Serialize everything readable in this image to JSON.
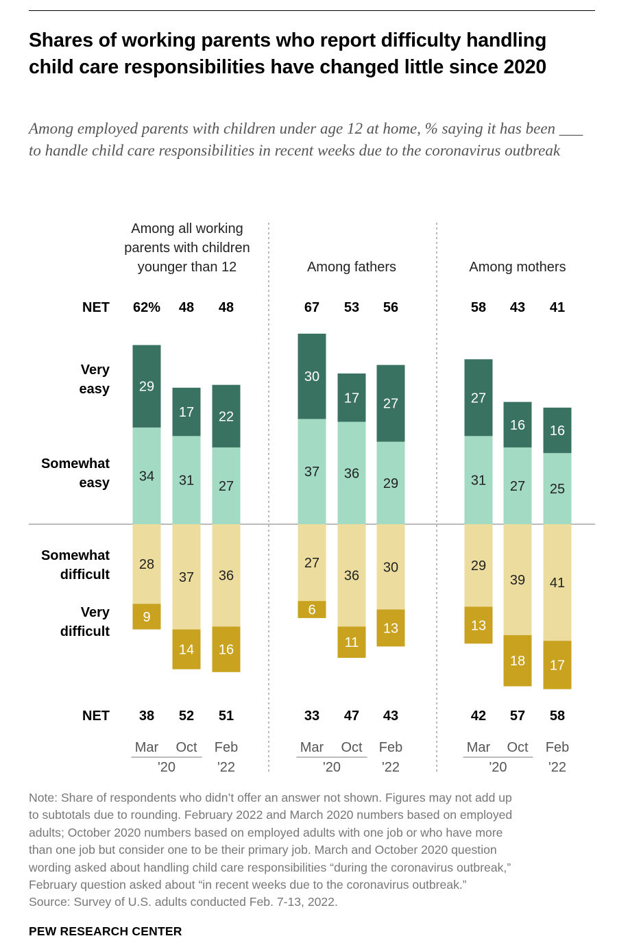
{
  "title": "Shares of working parents who report difficulty handling child care responsibilities have changed little since 2020",
  "subtitle": "Among employed parents with children under age 12 at home, % saying it has been ___ to handle child care responsibilities in recent weeks due to the coronavirus outbreak",
  "row_labels": {
    "net": "NET",
    "very_easy": [
      "Very",
      "easy"
    ],
    "somewhat_easy": [
      "Somewhat",
      "easy"
    ],
    "somewhat_difficult": [
      "Somewhat",
      "difficult"
    ],
    "very_difficult": [
      "Very",
      "difficult"
    ]
  },
  "colors": {
    "very_easy": "#3a7261",
    "somewhat_easy": "#a2dac3",
    "somewhat_difficult": "#ecdd9f",
    "very_difficult": "#c9a320"
  },
  "chart_data": {
    "type": "bar",
    "stacking": "diverging",
    "groups": [
      {
        "label": [
          "Among all working",
          "parents with children",
          "younger than 12"
        ],
        "categories": [
          "Mar",
          "Oct",
          "Feb"
        ],
        "year_labels": [
          "'20",
          "'22"
        ],
        "net_easy": [
          "62%",
          "48",
          "48"
        ],
        "net_difficult": [
          "38",
          "52",
          "51"
        ],
        "series": [
          {
            "name": "Very easy",
            "values": [
              29,
              17,
              22
            ]
          },
          {
            "name": "Somewhat easy",
            "values": [
              34,
              31,
              27
            ]
          },
          {
            "name": "Somewhat difficult",
            "values": [
              28,
              37,
              36
            ]
          },
          {
            "name": "Very difficult",
            "values": [
              9,
              14,
              16
            ]
          }
        ]
      },
      {
        "label": [
          "Among fathers"
        ],
        "categories": [
          "Mar",
          "Oct",
          "Feb"
        ],
        "year_labels": [
          "'20",
          "'22"
        ],
        "net_easy": [
          "67",
          "53",
          "56"
        ],
        "net_difficult": [
          "33",
          "47",
          "43"
        ],
        "series": [
          {
            "name": "Very easy",
            "values": [
              30,
              17,
              27
            ]
          },
          {
            "name": "Somewhat easy",
            "values": [
              37,
              36,
              29
            ]
          },
          {
            "name": "Somewhat difficult",
            "values": [
              27,
              36,
              30
            ]
          },
          {
            "name": "Very difficult",
            "values": [
              6,
              11,
              13
            ]
          }
        ]
      },
      {
        "label": [
          "Among mothers"
        ],
        "categories": [
          "Mar",
          "Oct",
          "Feb"
        ],
        "year_labels": [
          "'20",
          "'22"
        ],
        "net_easy": [
          "58",
          "43",
          "41"
        ],
        "net_difficult": [
          "42",
          "57",
          "58"
        ],
        "series": [
          {
            "name": "Very easy",
            "values": [
              27,
              16,
              16
            ]
          },
          {
            "name": "Somewhat easy",
            "values": [
              31,
              27,
              25
            ]
          },
          {
            "name": "Somewhat difficult",
            "values": [
              29,
              39,
              41
            ]
          },
          {
            "name": "Very difficult",
            "values": [
              13,
              18,
              17
            ]
          }
        ]
      }
    ]
  },
  "note_lines": [
    "Note: Share of respondents who didn’t offer an answer not shown. Figures may not add up",
    "to subtotals due to rounding. February 2022 and March 2020 numbers based on employed",
    "adults; October 2020 numbers based on employed adults with one job or who have more",
    "than one job but consider one to be their primary job. March and October 2020 question",
    "wording asked about handling child care responsibilities “during the coronavirus outbreak,”",
    "February question asked about “in recent weeks due to the coronavirus outbreak.”",
    "Source: Survey of U.S. adults conducted Feb. 7-13, 2022."
  ],
  "footer": "PEW RESEARCH CENTER"
}
